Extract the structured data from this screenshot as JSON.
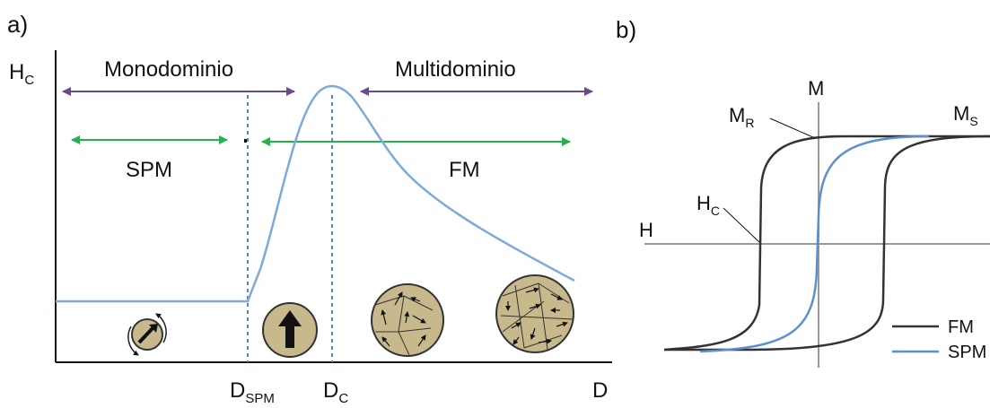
{
  "panel_a": {
    "tag": "a)",
    "y_axis_label": {
      "main": "H",
      "sub": "C"
    },
    "x_axis_label": "D",
    "regions": {
      "mono": "Monodominio",
      "multi": "Multidominio"
    },
    "states": {
      "spm": "SPM",
      "fm": "FM"
    },
    "ticks": {
      "d_spm": {
        "main": "D",
        "sub": "SPM"
      },
      "d_c": {
        "main": "D",
        "sub": "C"
      }
    }
  },
  "panel_b": {
    "tag": "b)",
    "axis_m": "M",
    "axis_h": "H",
    "mr": {
      "main": "M",
      "sub": "R"
    },
    "ms": {
      "main": "M",
      "sub": "S"
    },
    "hc": {
      "main": "H",
      "sub": "C"
    },
    "legend": [
      {
        "name": "FM",
        "color": "#333333"
      },
      {
        "name": "SPM",
        "color": "#5b8fcf"
      }
    ]
  },
  "colors": {
    "curve": "#7ea9db",
    "dashed": "#4f86c6",
    "mono_arrow": "#6a4a8c",
    "spm_arrow": "#22b14c",
    "grain_fill": "#c8b98c",
    "loop_fm": "#333333",
    "loop_spm": "#5b8fcf"
  }
}
